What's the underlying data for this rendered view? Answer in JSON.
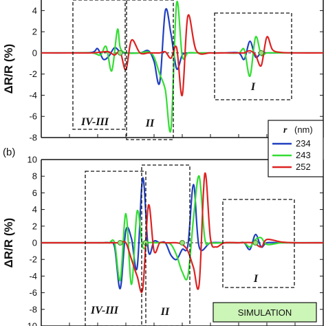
{
  "chart_data": [
    {
      "type": "line",
      "panel_label": "",
      "ylabel": "ΔR/R (%)",
      "ylim": [
        -8,
        5
      ],
      "yticks": [
        -8,
        -6,
        -4,
        -2,
        0,
        2,
        4
      ],
      "xlim": [
        0,
        100
      ],
      "region_labels": [
        "IV-III",
        "II",
        "I"
      ],
      "series": [
        {
          "name": "234",
          "color": "#1f3fbf",
          "x": [
            0,
            10,
            18,
            20,
            22,
            24,
            26,
            28,
            30,
            35,
            38,
            40,
            42,
            44,
            46,
            48,
            50,
            52,
            55,
            60,
            65,
            70,
            72,
            74,
            76,
            78,
            80,
            85,
            90,
            100
          ],
          "y": [
            0,
            0,
            0.05,
            0.4,
            -0.6,
            -0.3,
            0.5,
            0.1,
            0,
            0,
            0.2,
            -0.8,
            -2.8,
            4,
            1.8,
            -1.5,
            -0.2,
            0,
            0,
            0,
            0,
            0,
            -0.6,
            1.1,
            -0.4,
            0.05,
            0,
            0,
            0,
            0
          ]
        },
        {
          "name": "243",
          "color": "#33dd33",
          "x": [
            0,
            10,
            18,
            21,
            23,
            25,
            27,
            28,
            30,
            35,
            38,
            40,
            42,
            44,
            46,
            48,
            50,
            52,
            55,
            60,
            65,
            70,
            72,
            74,
            76,
            78,
            80,
            85,
            90,
            100
          ],
          "y": [
            0,
            0,
            0,
            -0.2,
            0.6,
            -1.7,
            2.2,
            0.5,
            0,
            0,
            0.1,
            -0.4,
            -2,
            -3.5,
            -7.2,
            4.7,
            -0.3,
            0,
            0,
            0,
            0,
            0,
            0.3,
            -2.2,
            1.5,
            -0.2,
            0,
            0,
            0,
            0
          ]
        },
        {
          "name": "252",
          "color": "#dd2222",
          "x": [
            0,
            10,
            18,
            22,
            24,
            26,
            28,
            30,
            32,
            35,
            38,
            40,
            42,
            44,
            46,
            48,
            50,
            52,
            55,
            60,
            65,
            70,
            72,
            74,
            76,
            78,
            80,
            82,
            85,
            90,
            100
          ],
          "y": [
            0,
            0,
            0,
            0.1,
            0.1,
            -0.2,
            0.1,
            -1.6,
            1.2,
            0,
            0,
            0,
            0,
            0.1,
            -0.5,
            0.5,
            -4,
            3.5,
            0.2,
            0,
            0,
            0,
            0,
            0.2,
            -0.2,
            -1.2,
            1.5,
            0.3,
            0.05,
            0,
            0
          ]
        }
      ],
      "markers_x": [
        28,
        78
      ]
    },
    {
      "type": "line",
      "panel_label": "(b)",
      "ylabel": "ΔR/R (%)",
      "ylim": [
        -10,
        10
      ],
      "yticks": [
        -10,
        -8,
        -6,
        -4,
        -2,
        0,
        2,
        4,
        6,
        8,
        10
      ],
      "xlim": [
        0,
        100
      ],
      "region_labels": [
        "IV-III",
        "II",
        "I"
      ],
      "annotation": "SIMULATION",
      "series": [
        {
          "name": "234",
          "color": "#1f3fbf",
          "x": [
            0,
            12,
            14,
            16,
            18,
            20,
            22,
            24,
            26,
            28,
            30,
            32,
            34,
            36,
            38,
            40,
            42,
            44,
            46,
            48,
            50,
            52,
            54,
            56,
            60,
            65,
            70,
            72,
            74,
            76,
            78,
            80,
            85,
            90,
            100
          ],
          "y": [
            0,
            0,
            0,
            0,
            0,
            0,
            0,
            0,
            -0.5,
            -5.5,
            1.5,
            0.5,
            -3,
            7.8,
            -1,
            0.2,
            0,
            0,
            -1.5,
            -2,
            -0.8,
            -0.3,
            7,
            -0.5,
            0,
            0,
            0,
            0,
            -0.8,
            1,
            -0.5,
            0,
            0,
            0,
            0
          ]
        },
        {
          "name": "243",
          "color": "#33dd33",
          "x": [
            0,
            12,
            14,
            16,
            18,
            20,
            22,
            24,
            26,
            28,
            30,
            32,
            34,
            36,
            38,
            40,
            42,
            44,
            46,
            48,
            50,
            52,
            54,
            56,
            58,
            60,
            65,
            70,
            72,
            74,
            76,
            78,
            80,
            85,
            90,
            100
          ],
          "y": [
            0,
            0,
            0,
            0,
            0,
            0,
            0,
            0,
            0,
            -4.5,
            3.5,
            -5,
            3.8,
            -0.5,
            0,
            0,
            0,
            0,
            -0.2,
            -1.5,
            -3.5,
            -4,
            3,
            8,
            0.5,
            0,
            0,
            0,
            0,
            -0.5,
            0.4,
            0.6,
            -0.2,
            0,
            0,
            0
          ]
        },
        {
          "name": "252",
          "color": "#dd2222",
          "x": [
            0,
            10,
            12,
            14,
            16,
            18,
            20,
            22,
            24,
            26,
            28,
            30,
            32,
            34,
            36,
            38,
            40,
            42,
            44,
            46,
            48,
            50,
            52,
            54,
            56,
            58,
            60,
            62,
            65,
            70,
            75,
            78,
            80,
            85,
            90,
            100
          ],
          "y": [
            0,
            0,
            0,
            0,
            0,
            0,
            0,
            0,
            0,
            0,
            0,
            0,
            -2,
            -4,
            -5.5,
            4.5,
            -1,
            0,
            0,
            0,
            0,
            -0.2,
            -1,
            -3,
            -5,
            8.3,
            0.5,
            -0.5,
            0,
            0,
            0,
            -0.5,
            0.4,
            0.1,
            0,
            0
          ]
        }
      ],
      "markers_x": [
        28,
        37,
        50,
        76
      ]
    }
  ],
  "legend": {
    "title": "r",
    "unit": "(nm)",
    "entries": [
      "234",
      "243",
      "252"
    ]
  }
}
